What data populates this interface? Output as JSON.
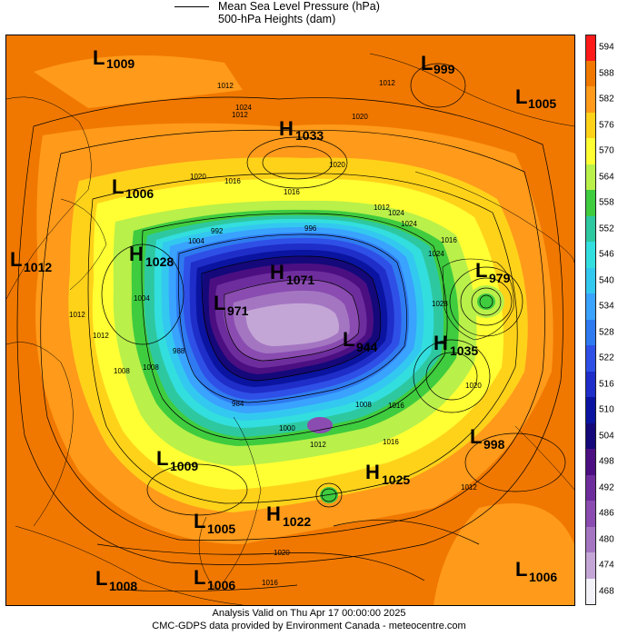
{
  "legend": {
    "line_label": "Mean Sea Level Pressure (hPa)",
    "fill_label": "500-hPa Heights (dam)"
  },
  "colorbar": {
    "levels": [
      "594",
      "588",
      "582",
      "576",
      "570",
      "564",
      "558",
      "552",
      "546",
      "540",
      "534",
      "528",
      "522",
      "516",
      "510",
      "504",
      "498",
      "492",
      "486",
      "480",
      "474",
      "468"
    ],
    "colors": [
      "#ff1a1a",
      "#f07800",
      "#ff9a1a",
      "#ffd21a",
      "#ffff33",
      "#b9f04a",
      "#3fcc3f",
      "#2ec8a0",
      "#33dede",
      "#33c8f0",
      "#3aa2ff",
      "#2f7af0",
      "#2f50e6",
      "#1f2ec8",
      "#0a14a0",
      "#14087a",
      "#4b0f82",
      "#6e2d9c",
      "#8a4cb0",
      "#a476c2",
      "#c4a6d6",
      "#f2f2f8"
    ]
  },
  "pressure_centers": [
    {
      "type": "L",
      "value": "1009"
    },
    {
      "type": "L",
      "value": "999"
    },
    {
      "type": "L",
      "value": "1005"
    },
    {
      "type": "H",
      "value": "1033"
    },
    {
      "type": "L",
      "value": "1006"
    },
    {
      "type": "L",
      "value": "1012"
    },
    {
      "type": "H",
      "value": "1028"
    },
    {
      "type": "H",
      "value": "1071"
    },
    {
      "type": "L",
      "value": "971"
    },
    {
      "type": "L",
      "value": "979"
    },
    {
      "type": "H",
      "value": "1035"
    },
    {
      "type": "L",
      "value": "944"
    },
    {
      "type": "L",
      "value": "998"
    },
    {
      "type": "L",
      "value": "1009"
    },
    {
      "type": "H",
      "value": "1025"
    },
    {
      "type": "H",
      "value": "1022"
    },
    {
      "type": "L",
      "value": "1005"
    },
    {
      "type": "L",
      "value": "1008"
    },
    {
      "type": "L",
      "value": "1006"
    },
    {
      "type": "L",
      "value": "1006"
    }
  ],
  "isobar_labels": [
    "1012",
    "1012",
    "1012",
    "1016",
    "1020",
    "1024",
    "1004",
    "1008",
    "1016",
    "1020",
    "1024",
    "1012",
    "1008",
    "1028",
    "1016",
    "1020",
    "1016",
    "1020",
    "1024",
    "1008",
    "1012",
    "1016",
    "1012",
    "1012",
    "1020",
    "1016",
    "1004",
    "1000",
    "992",
    "996",
    "984",
    "988",
    "1024",
    "1012"
  ],
  "footer": {
    "line1": "Analysis Valid on Thu Apr 17 00:00:00 2025",
    "line2": "CMC-GDPS data provided by Environment Canada - meteocentre.com"
  }
}
